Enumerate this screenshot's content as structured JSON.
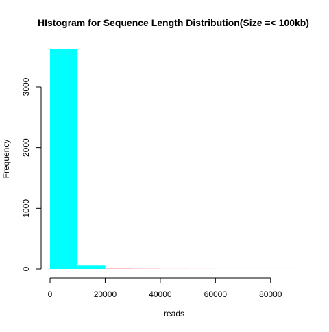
{
  "chart_data": {
    "type": "bar",
    "title": "HIstogram for Sequence Length Distribution(Size =< 100kb)",
    "xlabel": "reads",
    "ylabel": "Frequency",
    "bins": [
      {
        "start": 0,
        "end": 10000,
        "value": 3620,
        "color": "#00ffff"
      },
      {
        "start": 10000,
        "end": 20000,
        "value": 65,
        "color": "#00ffff"
      },
      {
        "start": 20000,
        "end": 30000,
        "value": 12,
        "color": "#ffc0cb"
      },
      {
        "start": 30000,
        "end": 40000,
        "value": 7,
        "color": "#ffc0cb"
      },
      {
        "start": 40000,
        "end": 50000,
        "value": 3,
        "color": "#ffc0cb"
      },
      {
        "start": 50000,
        "end": 60000,
        "value": 2,
        "color": "#ffc0cb"
      },
      {
        "start": 60000,
        "end": 70000,
        "value": 1,
        "color": "#ffc0cb"
      },
      {
        "start": 70000,
        "end": 80000,
        "value": 1,
        "color": "#ffc0cb"
      },
      {
        "start": 80000,
        "end": 90000,
        "value": 1,
        "color": "#ffc0cb"
      }
    ],
    "xlim": [
      0,
      90000
    ],
    "ylim": [
      0,
      3620
    ],
    "x_ticks": [
      0,
      20000,
      40000,
      60000,
      80000
    ],
    "y_ticks": [
      0,
      1000,
      2000,
      3000
    ],
    "grid": false,
    "legend": "none"
  }
}
